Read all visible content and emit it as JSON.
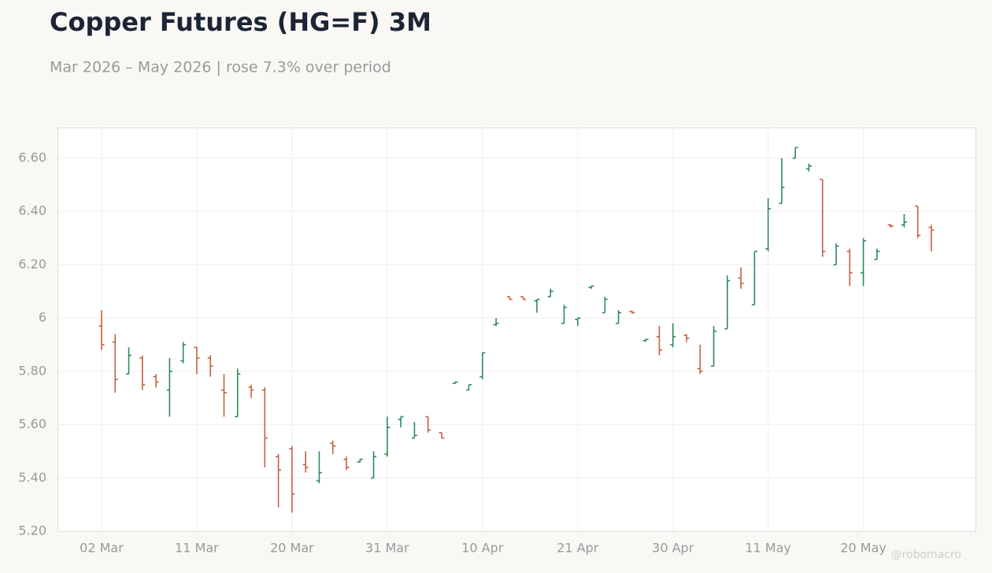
{
  "chart_data": {
    "type": "ohlc",
    "title": "Copper Futures (HG=F) 3M",
    "subtitle": "Mar 2026 – May 2026 | rose 7.3% over period",
    "watermark": "@robomacro",
    "categories": [
      "02 Mar",
      null,
      null,
      null,
      null,
      null,
      null,
      "11 Mar",
      null,
      null,
      null,
      null,
      null,
      null,
      "20 Mar",
      null,
      null,
      null,
      null,
      null,
      null,
      "31 Mar",
      null,
      null,
      null,
      null,
      null,
      null,
      "10 Apr",
      null,
      null,
      null,
      null,
      null,
      null,
      "21 Apr",
      null,
      null,
      null,
      null,
      null,
      null,
      "30 Apr",
      null,
      null,
      null,
      null,
      null,
      null,
      "11 May",
      null,
      null,
      null,
      null,
      null,
      null,
      "20 May",
      null,
      null,
      null,
      null,
      null
    ],
    "open": [
      5.97,
      5.91,
      5.79,
      5.85,
      5.78,
      5.73,
      5.84,
      5.89,
      5.85,
      5.73,
      5.63,
      5.74,
      5.73,
      5.48,
      5.51,
      5.45,
      5.39,
      5.53,
      5.47,
      5.46,
      5.4,
      5.49,
      5.62,
      5.55,
      5.63,
      5.57,
      5.755,
      5.73,
      5.78,
      5.975,
      6.08,
      6.08,
      6.065,
      6.08,
      5.98,
      5.995,
      6.115,
      6.02,
      5.98,
      6.025,
      5.915,
      5.93,
      5.9,
      5.935,
      5.81,
      5.82,
      5.96,
      6.15,
      6.05,
      6.26,
      6.43,
      6.6,
      6.56,
      6.52,
      6.2,
      6.25,
      6.17,
      6.22,
      6.35,
      6.35,
      6.42,
      6.34
    ],
    "high": [
      6.03,
      5.94,
      5.89,
      5.86,
      5.79,
      5.85,
      5.91,
      5.89,
      5.86,
      5.79,
      5.81,
      5.75,
      5.74,
      5.49,
      5.52,
      5.5,
      5.5,
      5.54,
      5.48,
      5.472,
      5.5,
      5.63,
      5.63,
      5.61,
      5.63,
      5.57,
      5.762,
      5.75,
      5.87,
      6.0,
      6.08,
      6.08,
      6.07,
      6.11,
      6.05,
      6.0,
      6.12,
      6.08,
      6.03,
      6.027,
      5.922,
      5.97,
      5.98,
      5.94,
      5.9,
      5.97,
      6.16,
      6.19,
      6.25,
      6.45,
      6.6,
      6.64,
      6.58,
      6.52,
      6.28,
      6.26,
      6.3,
      6.26,
      6.352,
      6.39,
      6.42,
      6.35
    ],
    "low": [
      5.88,
      5.72,
      5.79,
      5.73,
      5.74,
      5.63,
      5.83,
      5.79,
      5.78,
      5.63,
      5.63,
      5.7,
      5.44,
      5.29,
      5.27,
      5.42,
      5.38,
      5.49,
      5.43,
      5.458,
      5.4,
      5.48,
      5.59,
      5.55,
      5.57,
      5.55,
      5.754,
      5.73,
      5.77,
      5.97,
      6.07,
      6.07,
      6.02,
      6.08,
      5.98,
      5.97,
      6.11,
      6.02,
      5.98,
      6.017,
      5.912,
      5.86,
      5.89,
      5.91,
      5.79,
      5.82,
      5.96,
      6.11,
      6.05,
      6.25,
      6.43,
      6.6,
      6.55,
      6.23,
      6.2,
      6.12,
      6.12,
      6.22,
      6.34,
      6.34,
      6.3,
      6.25
    ],
    "close": [
      5.9,
      5.77,
      5.86,
      5.75,
      5.76,
      5.8,
      5.9,
      5.85,
      5.82,
      5.72,
      5.79,
      5.73,
      5.55,
      5.43,
      5.34,
      5.44,
      5.42,
      5.52,
      5.44,
      5.47,
      5.48,
      5.59,
      5.63,
      5.56,
      5.58,
      5.55,
      5.76,
      5.75,
      5.87,
      5.98,
      6.07,
      6.07,
      6.07,
      6.1,
      6.04,
      6.0,
      6.12,
      6.07,
      6.02,
      6.02,
      5.92,
      5.88,
      5.93,
      5.925,
      5.8,
      5.95,
      6.14,
      6.13,
      6.25,
      6.41,
      6.49,
      6.64,
      6.57,
      6.25,
      6.27,
      6.17,
      6.29,
      6.25,
      6.345,
      6.36,
      6.31,
      6.33
    ],
    "up_color": "#2e8b57",
    "down_color": "#c4623d",
    "ylim": [
      5.2,
      6.715
    ],
    "yticks": [
      {
        "value": 5.2,
        "label": "5.20"
      },
      {
        "value": 5.4,
        "label": "5.40"
      },
      {
        "value": 5.6,
        "label": "5.60"
      },
      {
        "value": 5.8,
        "label": "5.80"
      },
      6,
      {
        "value": 6.2,
        "label": "6.20"
      },
      {
        "value": 6.4,
        "label": "6.40"
      },
      {
        "value": 6.6,
        "label": "6.60"
      }
    ],
    "grid": true
  }
}
